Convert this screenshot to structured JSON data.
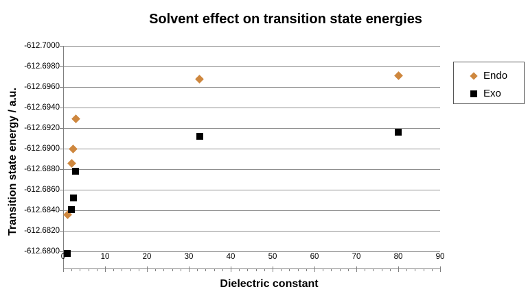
{
  "chart_data": {
    "type": "scatter",
    "title": "Solvent effect on transition state energies",
    "xlabel": "Dielectric constant",
    "ylabel": "Transition state energy / a.u.",
    "x_axis": {
      "min": 0,
      "max": 90,
      "major_unit": 10,
      "minor_tick_step": 2,
      "tick_labels": [
        "0",
        "10",
        "20",
        "30",
        "40",
        "50",
        "60",
        "70",
        "80",
        "90"
      ]
    },
    "y_axis": {
      "top_value": -612.7,
      "bottom_value": -612.68,
      "major_unit": 0.002,
      "direction": "reversed (most negative at top)",
      "tick_labels": [
        "-612.7000",
        "-612.6980",
        "-612.6960",
        "-612.6940",
        "-612.6920",
        "-612.6900",
        "-612.6880",
        "-612.6860",
        "-612.6840",
        "-612.6820",
        "-612.6800"
      ]
    },
    "grid": "horizontal-major",
    "legend_position": "right",
    "series": [
      {
        "name": "Endo",
        "marker": "diamond",
        "color": "#CE873E",
        "points": [
          [
            1,
            -612.6836
          ],
          [
            2,
            -612.6886
          ],
          [
            2.4,
            -612.69
          ],
          [
            3,
            -612.6929
          ],
          [
            32.6,
            -612.6968
          ],
          [
            80,
            -612.6971
          ]
        ]
      },
      {
        "name": "Exo",
        "marker": "square",
        "color": "#000000",
        "points": [
          [
            1,
            -612.6798
          ],
          [
            2,
            -612.6841
          ],
          [
            2.4,
            -612.6852
          ],
          [
            3,
            -612.6878
          ],
          [
            32.6,
            -612.6912
          ],
          [
            80,
            -612.6916
          ]
        ]
      }
    ]
  },
  "colors": {
    "background": "#FFFFFF",
    "gridline": "#8F8F8F",
    "axis": "#7F7F7F",
    "text": "#000000",
    "legend_border": "#565656",
    "endo_orange": "#CE873E",
    "exo_black": "#000000"
  }
}
